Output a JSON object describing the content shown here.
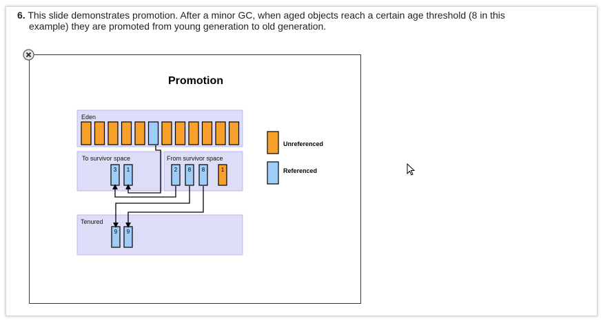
{
  "step": {
    "number": "6.",
    "line1": "This slide demonstrates promotion. After a minor GC, when aged objects reach a certain age threshold (8 in this",
    "line2": "example) they are promoted from young generation to old generation."
  },
  "diagram": {
    "title": "Promotion",
    "eden": {
      "label": "Eden",
      "objects": [
        "unreferenced",
        "unreferenced",
        "unreferenced",
        "unreferenced",
        "unreferenced",
        "referenced",
        "unreferenced",
        "unreferenced",
        "unreferenced",
        "unreferenced",
        "unreferenced",
        "unreferenced"
      ]
    },
    "to_survivor": {
      "label": "To survivor  space",
      "objects": [
        {
          "age": "3",
          "status": "referenced"
        },
        {
          "age": "1",
          "status": "referenced"
        }
      ]
    },
    "from_survivor": {
      "label": "From survivor  space",
      "objects": [
        {
          "age": "2",
          "status": "referenced"
        },
        {
          "age": "8",
          "status": "referenced"
        },
        {
          "age": "8",
          "status": "referenced"
        },
        {
          "age": "1",
          "status": "unreferenced"
        }
      ]
    },
    "tenured": {
      "label": "Tenured",
      "objects": [
        {
          "age": "9",
          "status": "referenced"
        },
        {
          "age": "9",
          "status": "referenced"
        }
      ]
    },
    "legend": {
      "unreferenced": "Unreferenced",
      "referenced": "Referenced"
    },
    "colors": {
      "unreferenced": "#f7a02b",
      "referenced": "#9fcdf7",
      "region_fill": "#ddddf8",
      "region_border": "#b9b9ec"
    }
  }
}
